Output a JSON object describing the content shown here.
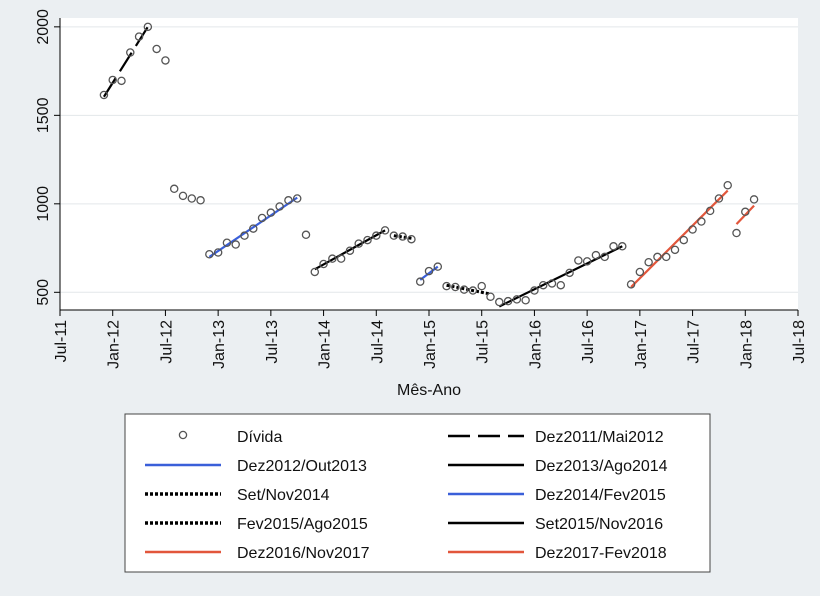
{
  "chart_data": {
    "type": "scatter",
    "xlabel": "Mês-Ano",
    "ylabel": "",
    "xlim": [
      "2011-07",
      "2018-07"
    ],
    "ylim": [
      400,
      2050
    ],
    "grid": true,
    "y_ticks": [
      500,
      1000,
      1500,
      2000
    ],
    "x_ticks": [
      "Jul-11",
      "Jan-12",
      "Jul-12",
      "Jan-13",
      "Jul-13",
      "Jan-14",
      "Jul-14",
      "Jan-15",
      "Jul-15",
      "Jan-16",
      "Jul-16",
      "Jan-17",
      "Jul-17",
      "Jan-18",
      "Jul-18"
    ],
    "legend_position": "bottom",
    "scatter": {
      "name": "Dívida",
      "color": "#555555",
      "points": [
        [
          "2011-12",
          1615
        ],
        [
          "2012-01",
          1700
        ],
        [
          "2012-02",
          1695
        ],
        [
          "2012-03",
          1855
        ],
        [
          "2012-04",
          1945
        ],
        [
          "2012-05",
          2000
        ],
        [
          "2012-06",
          1875
        ],
        [
          "2012-07",
          1810
        ],
        [
          "2012-08",
          1085
        ],
        [
          "2012-09",
          1045
        ],
        [
          "2012-10",
          1030
        ],
        [
          "2012-11",
          1020
        ],
        [
          "2012-12",
          715
        ],
        [
          "2013-01",
          725
        ],
        [
          "2013-02",
          780
        ],
        [
          "2013-03",
          770
        ],
        [
          "2013-04",
          820
        ],
        [
          "2013-05",
          860
        ],
        [
          "2013-06",
          920
        ],
        [
          "2013-07",
          950
        ],
        [
          "2013-08",
          985
        ],
        [
          "2013-09",
          1020
        ],
        [
          "2013-10",
          1030
        ],
        [
          "2013-11",
          825
        ],
        [
          "2013-12",
          615
        ],
        [
          "2014-01",
          660
        ],
        [
          "2014-02",
          690
        ],
        [
          "2014-03",
          690
        ],
        [
          "2014-04",
          735
        ],
        [
          "2014-05",
          775
        ],
        [
          "2014-06",
          795
        ],
        [
          "2014-07",
          820
        ],
        [
          "2014-08",
          850
        ],
        [
          "2014-09",
          820
        ],
        [
          "2014-10",
          815
        ],
        [
          "2014-11",
          800
        ],
        [
          "2014-12",
          560
        ],
        [
          "2015-01",
          620
        ],
        [
          "2015-02",
          645
        ],
        [
          "2015-03",
          535
        ],
        [
          "2015-04",
          530
        ],
        [
          "2015-05",
          515
        ],
        [
          "2015-06",
          510
        ],
        [
          "2015-07",
          535
        ],
        [
          "2015-08",
          475
        ],
        [
          "2015-09",
          445
        ],
        [
          "2015-10",
          450
        ],
        [
          "2015-11",
          460
        ],
        [
          "2015-12",
          455
        ],
        [
          "2016-01",
          510
        ],
        [
          "2016-02",
          540
        ],
        [
          "2016-03",
          550
        ],
        [
          "2016-04",
          540
        ],
        [
          "2016-05",
          610
        ],
        [
          "2016-06",
          680
        ],
        [
          "2016-07",
          675
        ],
        [
          "2016-08",
          710
        ],
        [
          "2016-09",
          700
        ],
        [
          "2016-10",
          760
        ],
        [
          "2016-11",
          760
        ],
        [
          "2016-12",
          545
        ],
        [
          "2017-01",
          615
        ],
        [
          "2017-02",
          670
        ],
        [
          "2017-03",
          700
        ],
        [
          "2017-04",
          700
        ],
        [
          "2017-05",
          740
        ],
        [
          "2017-06",
          795
        ],
        [
          "2017-07",
          855
        ],
        [
          "2017-08",
          900
        ],
        [
          "2017-09",
          960
        ],
        [
          "2017-10",
          1030
        ],
        [
          "2017-11",
          1105
        ],
        [
          "2017-12",
          835
        ],
        [
          "2018-01",
          955
        ],
        [
          "2018-02",
          1025
        ]
      ]
    },
    "series": [
      {
        "name": "Dez2011/Mai2012",
        "color": "#000000",
        "style": "longdash",
        "x": [
          "2011-12",
          "2012-05"
        ],
        "values": [
          1605,
          2000
        ]
      },
      {
        "name": "Dez2012/Out2013",
        "color": "#3a5fd9",
        "style": "solid",
        "x": [
          "2012-12",
          "2013-10"
        ],
        "values": [
          700,
          1035
        ]
      },
      {
        "name": "Dez2013/Ago2014",
        "color": "#000000",
        "style": "solid",
        "x": [
          "2013-12",
          "2014-08"
        ],
        "values": [
          630,
          850
        ]
      },
      {
        "name": "Set/Nov2014",
        "color": "#000000",
        "style": "dotted",
        "x": [
          "2014-09",
          "2014-11"
        ],
        "values": [
          820,
          805
        ]
      },
      {
        "name": "Dez2014/Fev2015",
        "color": "#3a5fd9",
        "style": "solid",
        "x": [
          "2014-12",
          "2015-02"
        ],
        "values": [
          570,
          645
        ]
      },
      {
        "name": "Fev2015/Ago2015",
        "color": "#000000",
        "style": "dotted",
        "x": [
          "2015-03",
          "2015-08"
        ],
        "values": [
          540,
          490
        ]
      },
      {
        "name": "Set2015/Nov2016",
        "color": "#000000",
        "style": "solid",
        "x": [
          "2015-09",
          "2016-11"
        ],
        "values": [
          420,
          760
        ]
      },
      {
        "name": "Dez2016/Nov2017",
        "color": "#e2563b",
        "style": "solid",
        "x": [
          "2016-12",
          "2017-11"
        ],
        "values": [
          530,
          1075
        ]
      },
      {
        "name": "Dez2017-Fev2018",
        "color": "#e2563b",
        "style": "solid",
        "x": [
          "2017-12",
          "2018-02"
        ],
        "values": [
          885,
          990
        ]
      }
    ]
  }
}
